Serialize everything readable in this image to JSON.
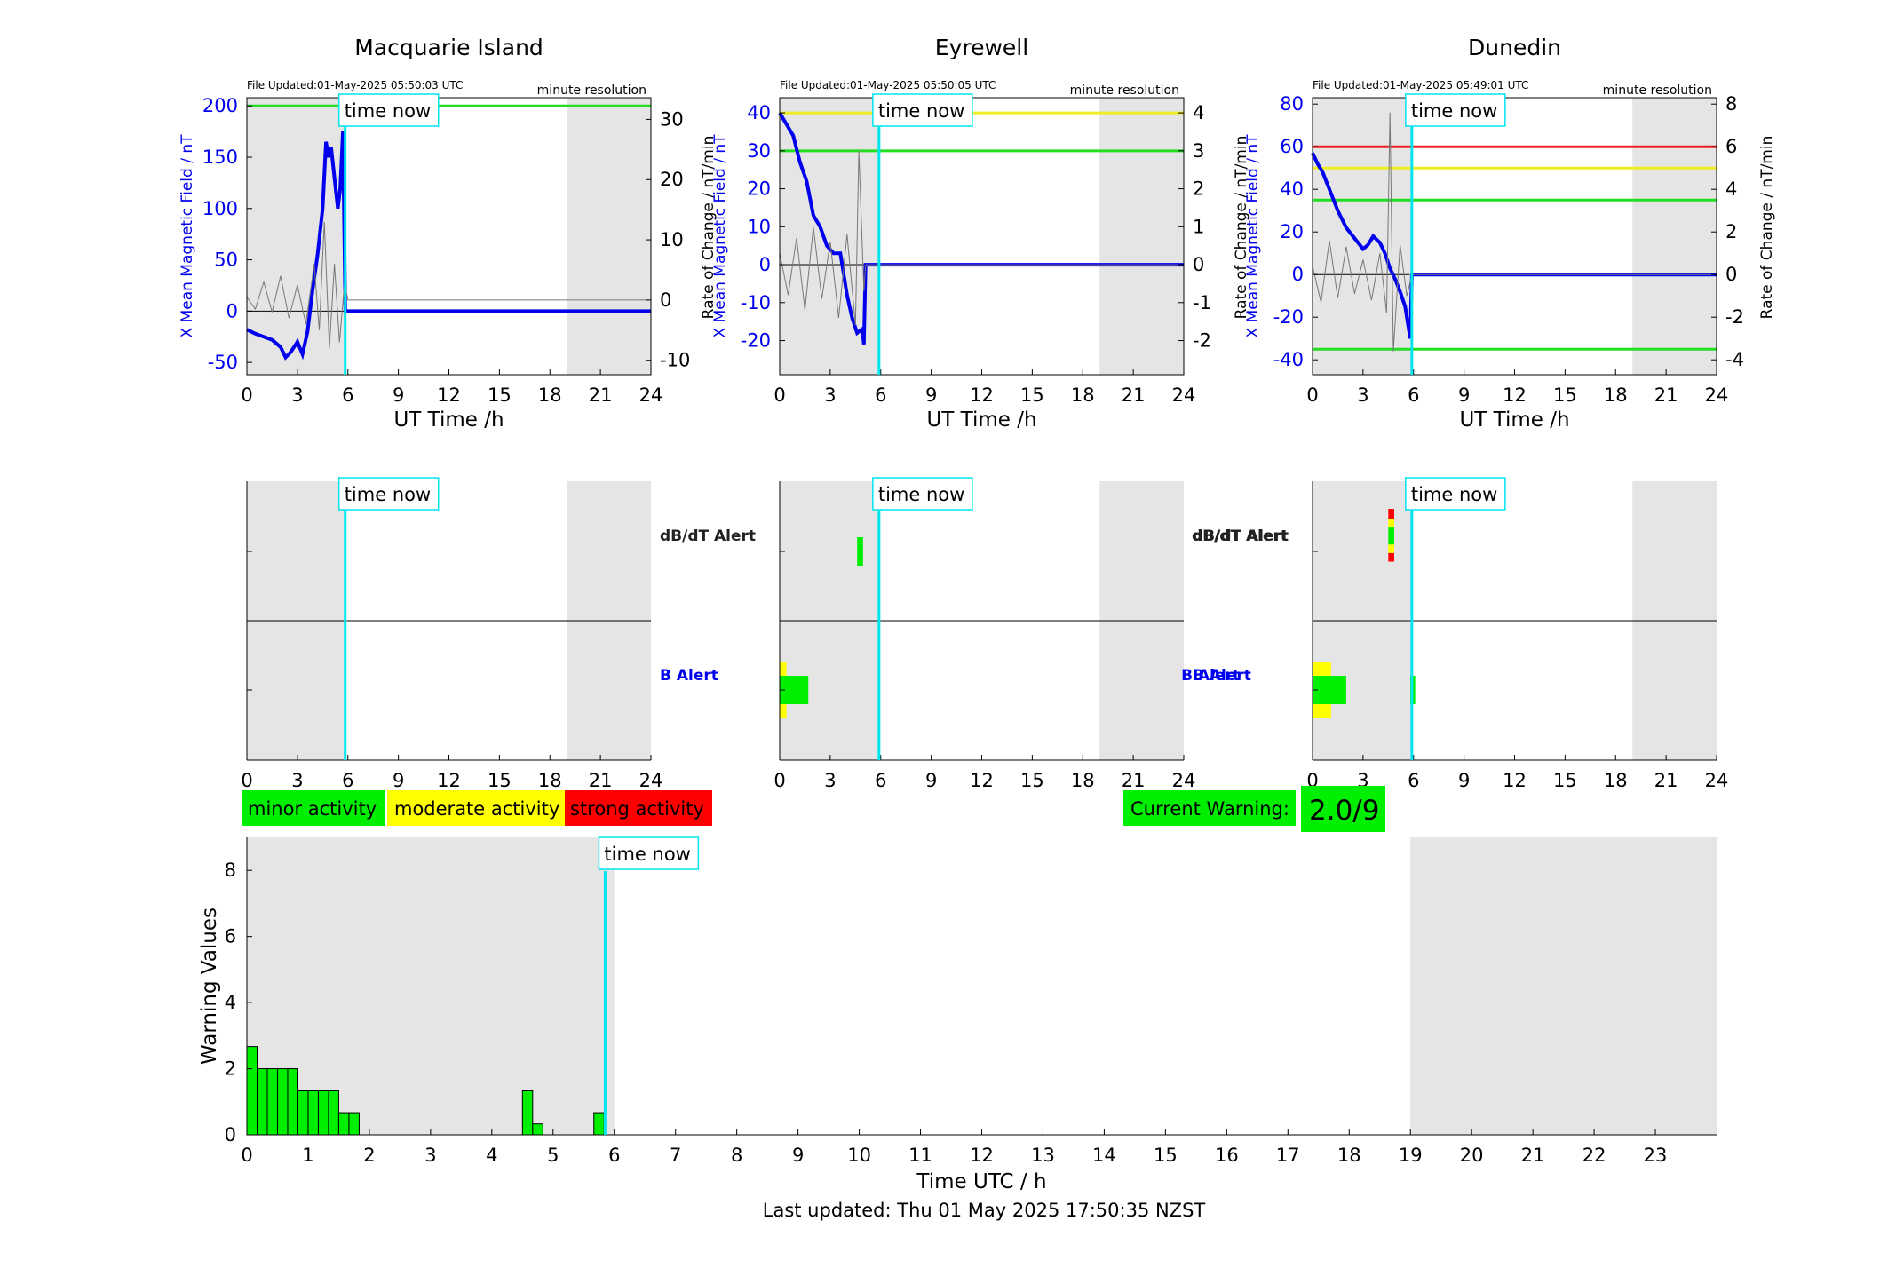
{
  "chart_data": [
    {
      "type": "line",
      "title": "Macquarie Island",
      "file_updated": "File Updated:01-May-2025 05:50:03 UTC",
      "resolution": "minute resolution",
      "xlabel": "UT Time /h",
      "ylabel_left": "X Mean Magnetic Field / nT",
      "ylabel_right": "Rate of Change / nT/min",
      "xlim": [
        0,
        24
      ],
      "ylim_left": [
        -62,
        208
      ],
      "ylim_right": [
        -12.4,
        33.6
      ],
      "xticks": [
        "0",
        "3",
        "6",
        "9",
        "12",
        "15",
        "18",
        "21",
        "24"
      ],
      "yticks_left": [
        "-50",
        "0",
        "50",
        "100",
        "150",
        "200"
      ],
      "yticks_right": [
        "-10",
        "0",
        "10",
        "20",
        "30"
      ],
      "shading": [
        [
          0,
          5.85
        ],
        [
          19,
          24
        ]
      ],
      "time_now": 5.84,
      "thresholds": [
        {
          "value": 200,
          "color": "#22dd22"
        }
      ],
      "series": [
        {
          "role": "field",
          "color": "#0000ee",
          "x": [
            0,
            0.5,
            1,
            1.5,
            2,
            2.3,
            2.6,
            3,
            3.3,
            3.6,
            3.9,
            4.2,
            4.5,
            4.7,
            4.85,
            5.0,
            5.2,
            5.4,
            5.55,
            5.7,
            5.85,
            6,
            24
          ],
          "y": [
            -18,
            -22,
            -25,
            -28,
            -35,
            -45,
            -40,
            -30,
            -42,
            -20,
            20,
            55,
            100,
            165,
            150,
            160,
            130,
            100,
            120,
            175,
            0,
            0,
            0
          ]
        },
        {
          "role": "rate",
          "color": "#777777",
          "x": [
            0,
            0.5,
            1,
            1.5,
            2,
            2.5,
            3,
            3.5,
            4,
            4.3,
            4.6,
            4.9,
            5.2,
            5.5,
            5.8,
            6,
            24
          ],
          "y": [
            0.5,
            -1.5,
            3,
            -2,
            4,
            -3,
            2.5,
            -4,
            6,
            -5,
            13,
            -8,
            6,
            -7,
            3,
            0,
            0
          ]
        }
      ]
    },
    {
      "type": "line",
      "title": "Eyrewell",
      "file_updated": "File Updated:01-May-2025 05:50:05 UTC",
      "resolution": "minute resolution",
      "xlabel": "UT Time /h",
      "ylabel_left": "X Mean Magnetic Field / nT",
      "ylabel_right": "Rate of Change / nT/min",
      "xlim": [
        0,
        24
      ],
      "ylim_left": [
        -29,
        44
      ],
      "ylim_right": [
        -2.9,
        4.4
      ],
      "xticks": [
        "0",
        "3",
        "6",
        "9",
        "12",
        "15",
        "18",
        "21",
        "24"
      ],
      "yticks_left": [
        "-20",
        "-10",
        "0",
        "10",
        "20",
        "30",
        "40"
      ],
      "yticks_right": [
        "-2",
        "-1",
        "0",
        "1",
        "2",
        "3",
        "4"
      ],
      "shading": [
        [
          0,
          5.9
        ],
        [
          19,
          24
        ]
      ],
      "time_now": 5.9,
      "thresholds": [
        {
          "value": 40,
          "color": "#eeee22"
        },
        {
          "value": 30,
          "color": "#22dd22"
        }
      ],
      "series": [
        {
          "role": "field",
          "color": "#0000ee",
          "x": [
            0,
            0.4,
            0.8,
            1.2,
            1.6,
            2.0,
            2.4,
            2.8,
            3.2,
            3.6,
            4.0,
            4.3,
            4.6,
            4.9,
            5.0,
            5.1,
            24
          ],
          "y": [
            40,
            37,
            34,
            27,
            22,
            13,
            10,
            5,
            3,
            3,
            -8,
            -14,
            -18,
            -17,
            -21,
            0,
            0
          ]
        },
        {
          "role": "rate",
          "color": "#777777",
          "x": [
            0,
            0.5,
            1,
            1.5,
            2,
            2.5,
            3,
            3.5,
            4,
            4.5,
            4.7,
            5.0,
            5.1,
            24
          ],
          "y": [
            0.3,
            -0.8,
            0.7,
            -1.2,
            1.0,
            -0.9,
            0.6,
            -1.4,
            0.8,
            -1.6,
            3.0,
            -0.7,
            0,
            0
          ]
        }
      ]
    },
    {
      "type": "line",
      "title": "Dunedin",
      "file_updated": "File Updated:01-May-2025 05:49:01 UTC",
      "resolution": "minute resolution",
      "xlabel": "UT Time /h",
      "ylabel_left": "X Mean Magnetic Field / nT",
      "ylabel_right": "Rate of Change / nT/min",
      "xlim": [
        0,
        24
      ],
      "ylim_left": [
        -47,
        83
      ],
      "ylim_right": [
        -4.7,
        8.3
      ],
      "xticks": [
        "0",
        "3",
        "6",
        "9",
        "12",
        "15",
        "18",
        "21",
        "24"
      ],
      "yticks_left": [
        "-40",
        "-20",
        "0",
        "20",
        "40",
        "60",
        "80"
      ],
      "yticks_right": [
        "-4",
        "-2",
        "0",
        "2",
        "4",
        "6",
        "8"
      ],
      "shading": [
        [
          0,
          5.9
        ],
        [
          19,
          24
        ]
      ],
      "time_now": 5.9,
      "thresholds": [
        {
          "value": 60,
          "color": "#ee2222"
        },
        {
          "value": 50,
          "color": "#eeee22"
        },
        {
          "value": 35,
          "color": "#22dd22"
        },
        {
          "value": -35,
          "color": "#22dd22"
        }
      ],
      "series": [
        {
          "role": "field",
          "color": "#0000ee",
          "x": [
            0,
            0.3,
            0.6,
            1.0,
            1.5,
            2.0,
            2.5,
            3.0,
            3.3,
            3.6,
            4.0,
            4.3,
            4.6,
            4.9,
            5.2,
            5.5,
            5.8,
            5.9,
            24
          ],
          "y": [
            57,
            52,
            48,
            40,
            30,
            22,
            17,
            12,
            14,
            18,
            15,
            10,
            3,
            -2,
            -8,
            -15,
            -30,
            0,
            0
          ]
        },
        {
          "role": "rate",
          "color": "#777777",
          "x": [
            0,
            0.5,
            1,
            1.5,
            2,
            2.5,
            3,
            3.5,
            4,
            4.4,
            4.6,
            4.8,
            5.2,
            5.6,
            5.9,
            24
          ],
          "y": [
            0.4,
            -1.3,
            1.6,
            -1.1,
            1.3,
            -0.9,
            0.7,
            -1.2,
            1.0,
            -1.8,
            7.6,
            -3.6,
            1.4,
            -1.0,
            0,
            0
          ]
        }
      ]
    },
    {
      "type": "bar",
      "title": "",
      "panel": "alert-timeline",
      "xlim": [
        0,
        24
      ],
      "xticks": [
        "0",
        "3",
        "6",
        "9",
        "12",
        "15",
        "18",
        "21",
        "24"
      ],
      "row_labels": [
        "dB/dT Alert",
        "B Alert"
      ],
      "shading": [
        [
          0,
          5.85
        ],
        [
          19,
          24
        ]
      ],
      "time_now": 5.84,
      "bars": []
    },
    {
      "type": "bar",
      "title": "",
      "panel": "alert-timeline",
      "xlim": [
        0,
        24
      ],
      "xticks": [
        "0",
        "3",
        "6",
        "9",
        "12",
        "15",
        "18",
        "21",
        "24"
      ],
      "row_labels": [
        "dB/dT Alert",
        "B Alert"
      ],
      "shading": [
        [
          0,
          5.9
        ],
        [
          19,
          24
        ]
      ],
      "time_now": 5.9,
      "bars": [
        {
          "row": 0,
          "x0": 4.6,
          "x1": 4.95,
          "level": 1
        },
        {
          "row": 1,
          "x0": 0,
          "x1": 0.4,
          "level": 2
        },
        {
          "row": 1,
          "x0": 0,
          "x1": 1.7,
          "level": 1
        }
      ]
    },
    {
      "type": "bar",
      "title": "",
      "panel": "alert-timeline",
      "xlim": [
        0,
        24
      ],
      "xticks": [
        "0",
        "3",
        "6",
        "9",
        "12",
        "15",
        "18",
        "21",
        "24"
      ],
      "row_labels": [
        "dB/dT Alert",
        "B Alert"
      ],
      "shading": [
        [
          0,
          5.9
        ],
        [
          19,
          24
        ]
      ],
      "time_now": 5.9,
      "bars": [
        {
          "row": 0,
          "x0": 4.5,
          "x1": 4.85,
          "level": 3,
          "band": [
            0.88,
            1.0
          ]
        },
        {
          "row": 0,
          "x0": 4.5,
          "x1": 4.85,
          "level": 2,
          "band": [
            0.78,
            0.88
          ]
        },
        {
          "row": 0,
          "x0": 4.5,
          "x1": 4.85,
          "level": 1,
          "band": [
            0.58,
            0.78
          ]
        },
        {
          "row": 0,
          "x0": 4.5,
          "x1": 4.85,
          "level": 2,
          "band": [
            0.48,
            0.58
          ]
        },
        {
          "row": 0,
          "x0": 4.5,
          "x1": 4.85,
          "level": 3,
          "band": [
            0.38,
            0.48
          ]
        },
        {
          "row": 1,
          "x0": 0,
          "x1": 1.1,
          "level": 2
        },
        {
          "row": 1,
          "x0": 0,
          "x1": 2.0,
          "level": 1
        },
        {
          "row": 1,
          "x0": 5.8,
          "x1": 6.1,
          "level": 1
        }
      ]
    },
    {
      "type": "bar",
      "title": "",
      "panel": "warning-history",
      "xlabel": "Time UTC / h",
      "ylabel": "Warning Values",
      "xlim": [
        0,
        24
      ],
      "ylim": [
        0,
        9
      ],
      "xticks": [
        "0",
        "1",
        "2",
        "3",
        "4",
        "5",
        "6",
        "7",
        "8",
        "9",
        "10",
        "11",
        "12",
        "13",
        "14",
        "15",
        "16",
        "17",
        "18",
        "19",
        "20",
        "21",
        "22",
        "23"
      ],
      "yticks": [
        "0",
        "2",
        "4",
        "6",
        "8"
      ],
      "shading": [
        [
          0,
          6.0
        ],
        [
          19,
          24
        ]
      ],
      "time_now": 5.85,
      "bin_width": 0.1667,
      "x": [
        0,
        0.1667,
        0.3333,
        0.5,
        0.6667,
        0.8333,
        1.0,
        1.1667,
        1.3333,
        1.5,
        1.6667,
        4.5,
        4.6667,
        5.6667
      ],
      "values": [
        2.67,
        2.0,
        2.0,
        2.0,
        2.0,
        1.33,
        1.33,
        1.33,
        1.33,
        0.67,
        0.67,
        1.33,
        0.33,
        0.67
      ]
    }
  ],
  "time_now_label": "time now",
  "legend": {
    "minor": {
      "label": "minor activity",
      "color": "#00ee00"
    },
    "moderate": {
      "label": "moderate activity",
      "color": "#ffff00"
    },
    "strong": {
      "label": "strong activity",
      "color": "#ff0000"
    }
  },
  "current_warning": {
    "label": "Current Warning:",
    "value": "2.0/9",
    "color": "#00ee00"
  },
  "footer": {
    "last_updated": "Last updated: Thu 01 May 2025 17:50:35 NZST"
  }
}
